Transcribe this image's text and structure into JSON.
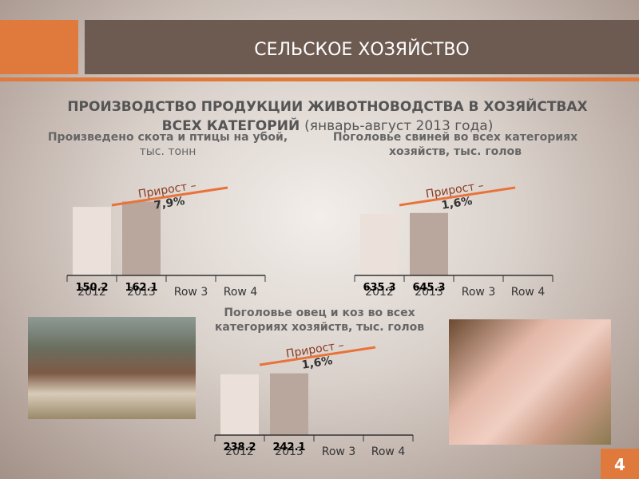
{
  "header": {
    "title": "СЕЛЬСКОЕ ХОЗЯЙСТВО"
  },
  "title": "ПРОИЗВОДСТВО ПРОДУКЦИИ ЖИВОТНОВОДСТВА В ХОЗЯЙСТВАХ ВСЕХ КАТЕГОРИЙ",
  "subtitle": "(январь-август 2013 года)",
  "page_number": "4",
  "chart_data": [
    {
      "type": "bar",
      "title": "Произведено скота и птицы на убой,",
      "subtitle": "тыс. тонн",
      "annotation": "Прирост – 7,9%",
      "categories": [
        "2012",
        "2013",
        "Row 3",
        "Row 4"
      ],
      "values": [
        150.2,
        162.1,
        null,
        null
      ],
      "colors": [
        "#ebe0da",
        "#b9a69d"
      ],
      "ylim": [
        0,
        175
      ]
    },
    {
      "type": "bar",
      "title": "Поголовье свиней во всех категориях хозяйств, тыс. голов",
      "annotation": "Прирост – 1,6%",
      "categories": [
        "2012",
        "2013",
        "Row 3",
        "Row 4"
      ],
      "values": [
        635.3,
        645.3,
        null,
        null
      ],
      "colors": [
        "#ebe0da",
        "#b9a69d"
      ],
      "ylim": [
        0,
        825
      ]
    },
    {
      "type": "bar",
      "title": "Поголовье овец и коз во всех категориях хозяйств, тыс. голов",
      "annotation": "Прирост – 1,6%",
      "categories": [
        "2012",
        "2013",
        "Row 3",
        "Row 4"
      ],
      "values": [
        238.2,
        242.1,
        null,
        null
      ],
      "colors": [
        "#ebe0da",
        "#b9a69d"
      ],
      "ylim": [
        0,
        313
      ]
    }
  ]
}
